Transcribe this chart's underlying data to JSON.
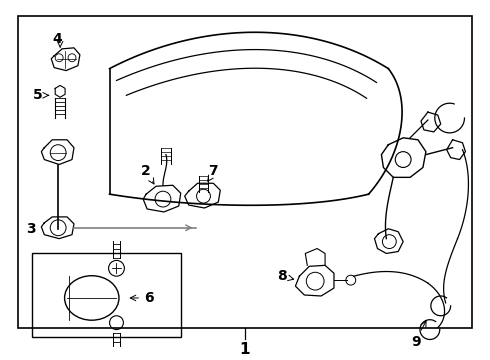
{
  "bg_color": "#ffffff",
  "line_color": "#000000",
  "gray_color": "#808080",
  "fig_width": 4.9,
  "fig_height": 3.6,
  "dpi": 100
}
